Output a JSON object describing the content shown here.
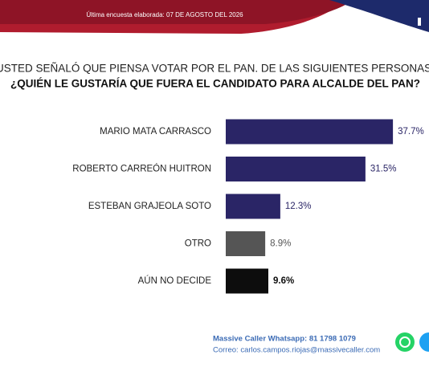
{
  "header": {
    "date_note": "Última encuesta elaborada: 07 DE AGOSTO DEL 2026"
  },
  "chart_data": {
    "type": "bar",
    "orientation": "horizontal",
    "title": "USTED SEÑALÓ QUE PIENSA VOTAR POR EL PAN. DE LAS SIGUIENTES PERSONAS,",
    "subtitle": "¿QUIÉN LE GUSTARÍA QUE FUERA EL CANDIDATO PARA ALCALDE DEL PAN?",
    "categories": [
      "MARIO MATA CARRASCO",
      "ROBERTO CARREÓN HUITRON",
      "ESTEBAN GRAJEOLA SOTO",
      "OTRO",
      "AÚN NO DECIDE"
    ],
    "values": [
      37.7,
      31.5,
      12.3,
      8.9,
      9.6
    ],
    "value_labels": [
      "37.7%",
      "31.5%",
      "12.3%",
      "8.9%",
      "9.6%"
    ],
    "colors": [
      "#2a2566",
      "#2a2566",
      "#2a2566",
      "#555555",
      "#0d0d0d"
    ]
  },
  "footer": {
    "whatsapp": "Massive Caller Whatsapp: 81 1798 1079",
    "email": "Correo: carlos.campos.riojas@massivecaller.com"
  }
}
